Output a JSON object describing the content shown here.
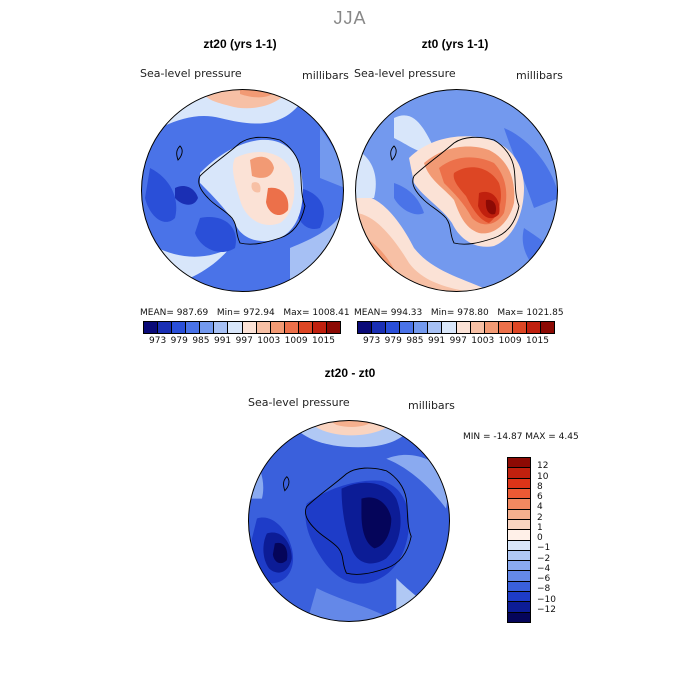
{
  "figure": {
    "season": "JJA"
  },
  "panels": [
    {
      "title": "zt20 (yrs 1-1)",
      "variable": "Sea-level pressure",
      "units": "millibars",
      "stats": {
        "mean_label": "MEAN=",
        "mean": "987.69",
        "min_label": "Min=",
        "min": "972.94",
        "max_label": "Max=",
        "max": "1008.41"
      }
    },
    {
      "title": "zt0 (yrs 1-1)",
      "variable": "Sea-level pressure",
      "units": "millibars",
      "stats": {
        "mean_label": "MEAN=",
        "mean": "994.33",
        "min_label": "Min=",
        "min": "978.80",
        "max_label": "Max=",
        "max": "1021.85"
      }
    },
    {
      "title": "zt20 - zt0",
      "variable": "Sea-level pressure",
      "units": "millibars",
      "stats": {
        "text": "MIN = -14.87 MAX =   4.45"
      }
    }
  ],
  "colorbar_top": {
    "colors": [
      "#0a0a78",
      "#1a2fb4",
      "#2a4fd8",
      "#4a73e8",
      "#7399ee",
      "#a6c0f4",
      "#d8e6fa",
      "#fbe2d6",
      "#f7c0a5",
      "#f29a74",
      "#ec704a",
      "#dd4624",
      "#c0200e",
      "#8c0a04"
    ],
    "tick_labels": [
      "973",
      "979",
      "985",
      "991",
      "997",
      "1003",
      "1009",
      "1015"
    ]
  },
  "colorbar_diff": {
    "colors": [
      "#8c0a04",
      "#c0200e",
      "#dd3418",
      "#ec5a34",
      "#f28860",
      "#f6b08e",
      "#fad4c0",
      "#fff0e8",
      "#d8e6fa",
      "#b0c8f4",
      "#8aaaf0",
      "#6488e8",
      "#3a60dc",
      "#1e3cc8",
      "#0c1c96",
      "#05055a"
    ],
    "tick_labels": [
      "12",
      "10",
      "8",
      "6",
      "4",
      "2",
      "1",
      "0",
      "−1",
      "−2",
      "−4",
      "−6",
      "−8",
      "−10",
      "−12"
    ]
  }
}
